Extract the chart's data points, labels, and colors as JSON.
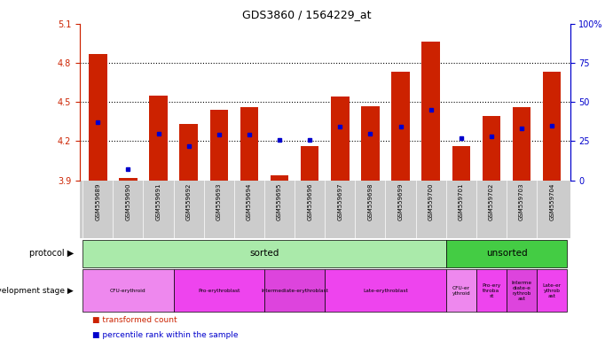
{
  "title": "GDS3860 / 1564229_at",
  "samples": [
    "GSM559689",
    "GSM559690",
    "GSM559691",
    "GSM559692",
    "GSM559693",
    "GSM559694",
    "GSM559695",
    "GSM559696",
    "GSM559697",
    "GSM559698",
    "GSM559699",
    "GSM559700",
    "GSM559701",
    "GSM559702",
    "GSM559703",
    "GSM559704"
  ],
  "transformed_count": [
    4.87,
    3.92,
    4.55,
    4.33,
    4.44,
    4.46,
    3.94,
    4.16,
    4.54,
    4.47,
    4.73,
    4.96,
    4.16,
    4.39,
    4.46,
    4.73
  ],
  "percentile_rank": [
    37,
    7,
    30,
    22,
    29,
    29,
    26,
    26,
    34,
    30,
    34,
    45,
    27,
    28,
    33,
    35
  ],
  "ylim_left": [
    3.9,
    5.1
  ],
  "ylim_right": [
    0,
    100
  ],
  "yticks_left": [
    3.9,
    4.2,
    4.5,
    4.8,
    5.1
  ],
  "yticks_right": [
    0,
    25,
    50,
    75,
    100
  ],
  "bar_color": "#cc2200",
  "dot_color": "#0000cc",
  "baseline": 3.9,
  "grid_dotted_values": [
    4.2,
    4.5,
    4.8
  ],
  "xtick_bg": "#cccccc",
  "protocol_sorted_color": "#aaeaaa",
  "protocol_unsorted_color": "#44cc44",
  "dev_colors": [
    "#ee88ee",
    "#ee44ee",
    "#dd44dd",
    "#ee44ee",
    "#ee88ee",
    "#ee44ee",
    "#dd44dd",
    "#ee44ee"
  ],
  "dev_ranges": [
    [
      0,
      3
    ],
    [
      3,
      6
    ],
    [
      6,
      8
    ],
    [
      8,
      12
    ],
    [
      12,
      13
    ],
    [
      13,
      14
    ],
    [
      14,
      15
    ],
    [
      15,
      16
    ]
  ],
  "dev_labels": [
    "CFU-erythroid",
    "Pro-erythroblast",
    "Intermediate-erythroblast",
    "Late-erythroblast",
    "CFU-er\nythroid",
    "Pro-ery\nthroba\nst",
    "Interme\ndiate-e\nrythrob\nast",
    "Late-er\nythrob\nast"
  ]
}
